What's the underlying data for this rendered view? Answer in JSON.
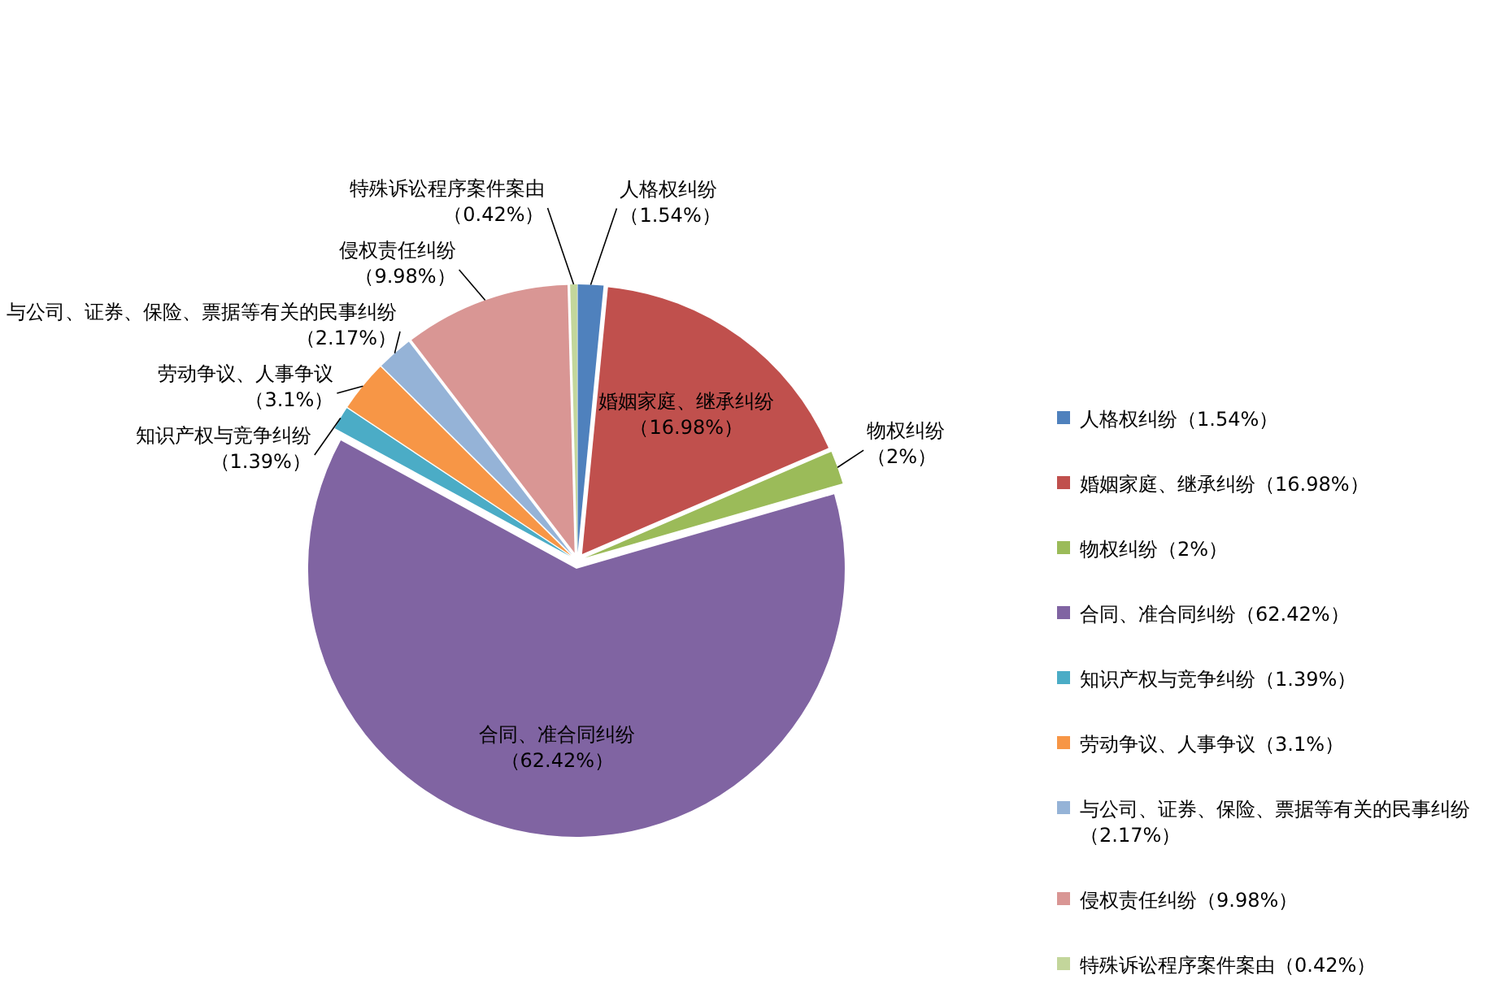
{
  "chart_data": {
    "type": "pie",
    "categories": [
      "人格权纠纷",
      "婚姻家庭、继承纠纷",
      "物权纠纷",
      "合同、准合同纠纷",
      "知识产权与竞争纠纷",
      "劳动争议、人事争议",
      "与公司、证券、保险、票据等有关的民事纠纷",
      "侵权责任纠纷",
      "特殊诉讼程序案件案由"
    ],
    "values": [
      1.54,
      16.98,
      2,
      62.42,
      1.39,
      3.1,
      2.17,
      9.98,
      0.42
    ],
    "colors": [
      "#4f81bd",
      "#c0504d",
      "#9bbb59",
      "#8064a2",
      "#4bacc6",
      "#f79646",
      "#95b3d7",
      "#d99694",
      "#c3d69b"
    ],
    "value_labels": [
      "（1.54%）",
      "（16.98%）",
      "（2%）",
      "（62.42%）",
      "（1.39%）",
      "（3.1%）",
      "（2.17%）",
      "（9.98%）",
      "（0.42%）"
    ],
    "legend": "right"
  }
}
